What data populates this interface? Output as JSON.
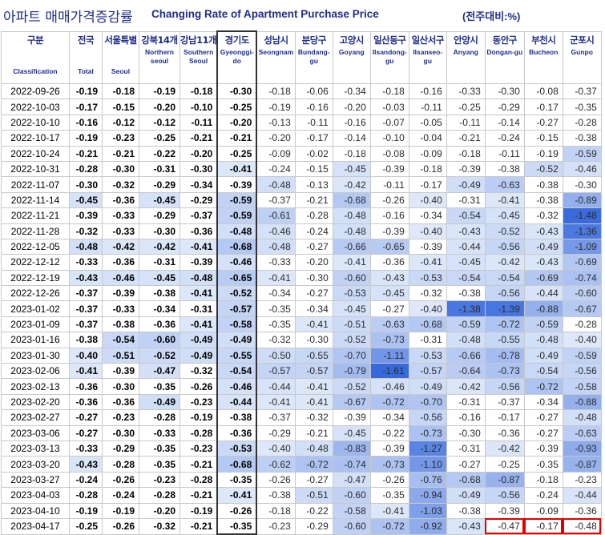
{
  "title": {
    "korean": "아파트 매매가격증감률",
    "english": "Changing Rate of Apartment Purchase Price",
    "unit": "(전주대비:%)"
  },
  "columns": [
    {
      "ko": "구분",
      "en": "Classification"
    },
    {
      "ko": "전국",
      "en": "Total"
    },
    {
      "ko": "서울특별",
      "en": "Seoul"
    },
    {
      "ko": "강북14개",
      "en": "Northern seoul"
    },
    {
      "ko": "강남11개",
      "en": "Southern Seoul"
    },
    {
      "ko": "경기도",
      "en": "Gyeonggi-do"
    },
    {
      "ko": "성남시",
      "en": "Seongnam"
    },
    {
      "ko": "분당구",
      "en": "Bundang-gu"
    },
    {
      "ko": "고양시",
      "en": "Goyang"
    },
    {
      "ko": "일산동구",
      "en": "Ilsandong-gu"
    },
    {
      "ko": "일산서구",
      "en": "Ilsanseo-gu"
    },
    {
      "ko": "안양시",
      "en": "Anyang"
    },
    {
      "ko": "동안구",
      "en": "Dongan-gu"
    },
    {
      "ko": "부천시",
      "en": "Bucheon"
    },
    {
      "ko": "군포시",
      "en": "Gunpo"
    }
  ],
  "highlighted": {
    "row": 30,
    "cols": [
      12,
      13,
      14
    ],
    "color": "#e00000"
  },
  "rows": [
    {
      "date": "2022-09-26",
      "values": [
        "-0.19",
        "-0.18",
        "-0.19",
        "-0.18",
        "-0.30",
        "-0.18",
        "-0.06",
        "-0.34",
        "-0.18",
        "-0.16",
        "-0.33",
        "-0.30",
        "-0.08",
        "-0.37"
      ]
    },
    {
      "date": "2022-10-03",
      "values": [
        "-0.17",
        "-0.15",
        "-0.20",
        "-0.10",
        "-0.25",
        "-0.19",
        "-0.16",
        "-0.20",
        "-0.03",
        "-0.11",
        "-0.25",
        "-0.29",
        "-0.17",
        "-0.35"
      ]
    },
    {
      "date": "2022-10-10",
      "values": [
        "-0.16",
        "-0.12",
        "-0.12",
        "-0.11",
        "-0.20",
        "-0.13",
        "-0.11",
        "-0.16",
        "-0.07",
        "-0.05",
        "-0.11",
        "-0.14",
        "-0.27",
        "-0.28"
      ]
    },
    {
      "date": "2022-10-17",
      "values": [
        "-0.19",
        "-0.23",
        "-0.25",
        "-0.21",
        "-0.21",
        "-0.20",
        "-0.17",
        "-0.14",
        "-0.10",
        "-0.04",
        "-0.21",
        "-0.24",
        "-0.15",
        "-0.38"
      ]
    },
    {
      "date": "2022-10-24",
      "values": [
        "-0.21",
        "-0.21",
        "-0.22",
        "-0.20",
        "-0.25",
        "-0.09",
        "-0.02",
        "-0.18",
        "-0.08",
        "-0.09",
        "-0.18",
        "-0.11",
        "-0.19",
        "-0.59"
      ]
    },
    {
      "date": "2022-10-31",
      "values": [
        "-0.28",
        "-0.30",
        "-0.31",
        "-0.30",
        "-0.41",
        "-0.24",
        "-0.15",
        "-0.45",
        "-0.39",
        "-0.18",
        "-0.39",
        "-0.38",
        "-0.52",
        "-0.46"
      ]
    },
    {
      "date": "2022-11-07",
      "values": [
        "-0.30",
        "-0.32",
        "-0.29",
        "-0.34",
        "-0.39",
        "-0.48",
        "-0.13",
        "-0.42",
        "-0.11",
        "-0.17",
        "-0.49",
        "-0.63",
        "-0.38",
        "-0.30"
      ]
    },
    {
      "date": "2022-11-14",
      "values": [
        "-0.45",
        "-0.36",
        "-0.45",
        "-0.29",
        "-0.59",
        "-0.37",
        "-0.21",
        "-0.68",
        "-0.26",
        "-0.40",
        "-0.31",
        "-0.41",
        "-0.38",
        "-0.89"
      ]
    },
    {
      "date": "2022-11-21",
      "values": [
        "-0.39",
        "-0.33",
        "-0.29",
        "-0.37",
        "-0.59",
        "-0.61",
        "-0.28",
        "-0.48",
        "-0.16",
        "-0.34",
        "-0.54",
        "-0.45",
        "-0.32",
        "-1.48"
      ]
    },
    {
      "date": "2022-11-28",
      "values": [
        "-0.32",
        "-0.33",
        "-0.30",
        "-0.36",
        "-0.48",
        "-0.46",
        "-0.24",
        "-0.48",
        "-0.39",
        "-0.40",
        "-0.43",
        "-0.52",
        "-0.43",
        "-1.36"
      ]
    },
    {
      "date": "2022-12-05",
      "values": [
        "-0.48",
        "-0.42",
        "-0.42",
        "-0.41",
        "-0.68",
        "-0.48",
        "-0.27",
        "-0.66",
        "-0.65",
        "-0.39",
        "-0.44",
        "-0.56",
        "-0.49",
        "-1.09"
      ]
    },
    {
      "date": "2022-12-12",
      "values": [
        "-0.33",
        "-0.36",
        "-0.31",
        "-0.39",
        "-0.46",
        "-0.33",
        "-0.20",
        "-0.41",
        "-0.36",
        "-0.41",
        "-0.45",
        "-0.42",
        "-0.43",
        "-0.69"
      ]
    },
    {
      "date": "2022-12-19",
      "values": [
        "-0.43",
        "-0.46",
        "-0.45",
        "-0.48",
        "-0.65",
        "-0.41",
        "-0.30",
        "-0.60",
        "-0.43",
        "-0.53",
        "-0.54",
        "-0.54",
        "-0.69",
        "-0.74"
      ]
    },
    {
      "date": "2022-12-26",
      "values": [
        "-0.37",
        "-0.39",
        "-0.38",
        "-0.41",
        "-0.52",
        "-0.34",
        "-0.27",
        "-0.53",
        "-0.45",
        "-0.32",
        "-0.38",
        "-0.56",
        "-0.44",
        "-0.60"
      ]
    },
    {
      "date": "2023-01-02",
      "values": [
        "-0.37",
        "-0.33",
        "-0.34",
        "-0.31",
        "-0.57",
        "-0.35",
        "-0.34",
        "-0.45",
        "-0.27",
        "-0.40",
        "-1.38",
        "-1.39",
        "-0.88",
        "-0.67"
      ]
    },
    {
      "date": "2023-01-09",
      "values": [
        "-0.37",
        "-0.38",
        "-0.36",
        "-0.41",
        "-0.58",
        "-0.35",
        "-0.41",
        "-0.51",
        "-0.63",
        "-0.68",
        "-0.59",
        "-0.72",
        "-0.59",
        "-0.28"
      ]
    },
    {
      "date": "2023-01-16",
      "values": [
        "-0.38",
        "-0.54",
        "-0.60",
        "-0.49",
        "-0.49",
        "-0.32",
        "-0.30",
        "-0.52",
        "-0.73",
        "-0.31",
        "-0.48",
        "-0.55",
        "-0.48",
        "-0.40"
      ]
    },
    {
      "date": "2023-01-30",
      "values": [
        "-0.40",
        "-0.51",
        "-0.52",
        "-0.49",
        "-0.55",
        "-0.50",
        "-0.55",
        "-0.70",
        "-1.11",
        "-0.53",
        "-0.66",
        "-0.78",
        "-0.49",
        "-0.59"
      ]
    },
    {
      "date": "2023-02-06",
      "values": [
        "-0.41",
        "-0.39",
        "-0.47",
        "-0.32",
        "-0.54",
        "-0.57",
        "-0.57",
        "-0.79",
        "-1.61",
        "-0.57",
        "-0.64",
        "-0.73",
        "-0.54",
        "-0.56"
      ]
    },
    {
      "date": "2023-02-13",
      "values": [
        "-0.36",
        "-0.30",
        "-0.35",
        "-0.26",
        "-0.46",
        "-0.44",
        "-0.41",
        "-0.52",
        "-0.46",
        "-0.49",
        "-0.42",
        "-0.56",
        "-0.72",
        "-0.58"
      ]
    },
    {
      "date": "2023-02-20",
      "values": [
        "-0.36",
        "-0.36",
        "-0.49",
        "-0.23",
        "-0.44",
        "-0.41",
        "-0.41",
        "-0.67",
        "-0.72",
        "-0.70",
        "-0.31",
        "-0.37",
        "-0.34",
        "-0.88"
      ]
    },
    {
      "date": "2023-02-27",
      "values": [
        "-0.27",
        "-0.23",
        "-0.28",
        "-0.19",
        "-0.38",
        "-0.37",
        "-0.32",
        "-0.39",
        "-0.34",
        "-0.56",
        "-0.16",
        "-0.17",
        "-0.27",
        "-0.48"
      ]
    },
    {
      "date": "2023-03-06",
      "values": [
        "-0.27",
        "-0.30",
        "-0.33",
        "-0.28",
        "-0.36",
        "-0.29",
        "-0.21",
        "-0.45",
        "-0.22",
        "-0.73",
        "-0.30",
        "-0.36",
        "-0.27",
        "-0.63"
      ]
    },
    {
      "date": "2023-03-13",
      "values": [
        "-0.33",
        "-0.29",
        "-0.35",
        "-0.23",
        "-0.53",
        "-0.40",
        "-0.48",
        "-0.83",
        "-0.39",
        "-1.27",
        "-0.31",
        "-0.42",
        "-0.39",
        "-0.93"
      ]
    },
    {
      "date": "2023-03-20",
      "values": [
        "-0.43",
        "-0.28",
        "-0.35",
        "-0.21",
        "-0.68",
        "-0.62",
        "-0.72",
        "-0.74",
        "-0.73",
        "-1.10",
        "-0.27",
        "-0.25",
        "-0.35",
        "-0.87"
      ]
    },
    {
      "date": "2023-03-27",
      "values": [
        "-0.24",
        "-0.26",
        "-0.23",
        "-0.28",
        "-0.35",
        "-0.26",
        "-0.27",
        "-0.47",
        "-0.26",
        "-0.76",
        "-0.68",
        "-0.87",
        "-0.18",
        "-0.23"
      ]
    },
    {
      "date": "2023-04-03",
      "values": [
        "-0.28",
        "-0.24",
        "-0.28",
        "-0.21",
        "-0.41",
        "-0.38",
        "-0.51",
        "-0.60",
        "-0.35",
        "-0.94",
        "-0.49",
        "-0.56",
        "-0.24",
        "-0.44"
      ]
    },
    {
      "date": "2023-04-10",
      "values": [
        "-0.19",
        "-0.19",
        "-0.20",
        "-0.19",
        "-0.26",
        "-0.18",
        "-0.22",
        "-0.58",
        "-0.41",
        "-1.03",
        "-0.38",
        "-0.39",
        "-0.09",
        "-0.36"
      ]
    },
    {
      "date": "2023-04-17",
      "values": [
        "-0.25",
        "-0.26",
        "-0.32",
        "-0.21",
        "-0.35",
        "-0.23",
        "-0.29",
        "-0.60",
        "-0.72",
        "-0.92",
        "-0.43",
        "-0.47",
        "-0.17",
        "-0.48"
      ]
    }
  ]
}
